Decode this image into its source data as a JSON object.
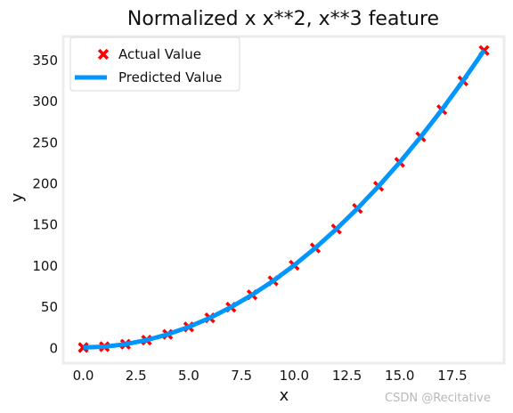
{
  "chart_data": {
    "type": "scatter+line",
    "title": "Normalized x x**2, x**3 feature",
    "xlabel": "x",
    "ylabel": "y",
    "xlim": [
      -0.95,
      19.95
    ],
    "ylim": [
      -18,
      379
    ],
    "xticks": [
      0.0,
      2.5,
      5.0,
      7.5,
      10.0,
      12.5,
      15.0,
      17.5
    ],
    "xtick_labels": [
      "0.0",
      "2.5",
      "5.0",
      "7.5",
      "10.0",
      "12.5",
      "15.0",
      "17.5"
    ],
    "yticks": [
      0,
      50,
      100,
      150,
      200,
      250,
      300,
      350
    ],
    "ytick_labels": [
      "0",
      "50",
      "100",
      "150",
      "200",
      "250",
      "300",
      "350"
    ],
    "legend_position": "top-left",
    "series": [
      {
        "name": "Actual Value",
        "kind": "scatter",
        "marker": "X",
        "color": "#ff0000",
        "x": [
          0,
          1,
          2,
          3,
          4,
          5,
          6,
          7,
          8,
          9,
          10,
          11,
          12,
          13,
          14,
          15,
          16,
          17,
          18,
          19
        ],
        "y": [
          1,
          2,
          5,
          10,
          17,
          26,
          37,
          50,
          65,
          82,
          101,
          122,
          145,
          170,
          197,
          226,
          257,
          290,
          325,
          362
        ]
      },
      {
        "name": "Predicted Value",
        "kind": "line",
        "color": "#0096ff",
        "x": [
          0,
          1,
          2,
          3,
          4,
          5,
          6,
          7,
          8,
          9,
          10,
          11,
          12,
          13,
          14,
          15,
          16,
          17,
          18,
          19
        ],
        "y": [
          1,
          2,
          5,
          10,
          17,
          26,
          37,
          50,
          65,
          82,
          101,
          122,
          145,
          170,
          197,
          226,
          257,
          290,
          325,
          362
        ]
      }
    ]
  },
  "watermark": "CSDN @Recitative"
}
